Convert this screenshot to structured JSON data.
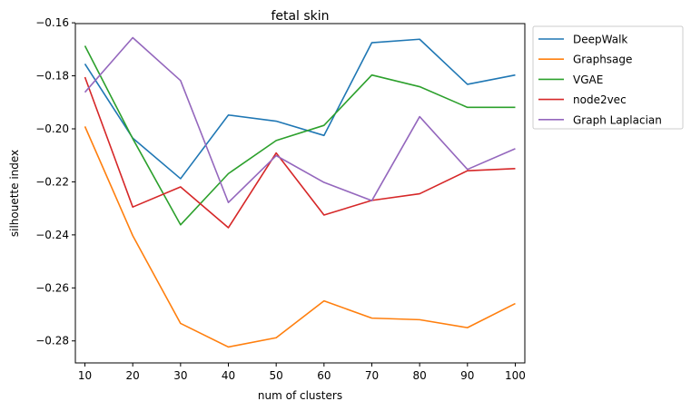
{
  "chart_data": {
    "type": "line",
    "title": "fetal skin",
    "xlabel": "num of clusters",
    "ylabel": "silhouette index",
    "x": [
      10,
      20,
      30,
      40,
      50,
      60,
      70,
      80,
      90,
      100
    ],
    "x_ticks": [
      "10",
      "20",
      "30",
      "40",
      "50",
      "60",
      "70",
      "80",
      "90",
      "100"
    ],
    "y_ticks": [
      "−0.28",
      "−0.26",
      "−0.24",
      "−0.22",
      "−0.20",
      "−0.18",
      "−0.16"
    ],
    "y_tick_values": [
      -0.28,
      -0.26,
      -0.24,
      -0.22,
      -0.2,
      -0.18,
      -0.16
    ],
    "xlim": [
      8,
      102
    ],
    "ylim": [
      -0.2883,
      -0.1603
    ],
    "grid": false,
    "legend_position": "outside-top-right",
    "series": [
      {
        "name": "DeepWalk",
        "color": "#1f77b4",
        "values": [
          -0.1755,
          -0.2035,
          -0.2188,
          -0.1948,
          -0.1971,
          -0.2025,
          -0.1675,
          -0.1662,
          -0.1832,
          -0.1797
        ]
      },
      {
        "name": "Graphsage",
        "color": "#ff7f0e",
        "values": [
          -0.1991,
          -0.2403,
          -0.2734,
          -0.2823,
          -0.2788,
          -0.2649,
          -0.2714,
          -0.272,
          -0.275,
          -0.2659
        ]
      },
      {
        "name": "VGAE",
        "color": "#2ca02c",
        "values": [
          -0.1687,
          -0.2037,
          -0.2362,
          -0.2169,
          -0.2044,
          -0.1987,
          -0.1797,
          -0.1841,
          -0.1919,
          -0.1919
        ]
      },
      {
        "name": "node2vec",
        "color": "#d62728",
        "values": [
          -0.1805,
          -0.2295,
          -0.2219,
          -0.2373,
          -0.2091,
          -0.2325,
          -0.227,
          -0.2245,
          -0.2158,
          -0.215
        ]
      },
      {
        "name": "Graph Laplacian",
        "color": "#9467bd",
        "values": [
          -0.1862,
          -0.1656,
          -0.1818,
          -0.2278,
          -0.2101,
          -0.2202,
          -0.2271,
          -0.1954,
          -0.2153,
          -0.2075
        ]
      }
    ]
  }
}
